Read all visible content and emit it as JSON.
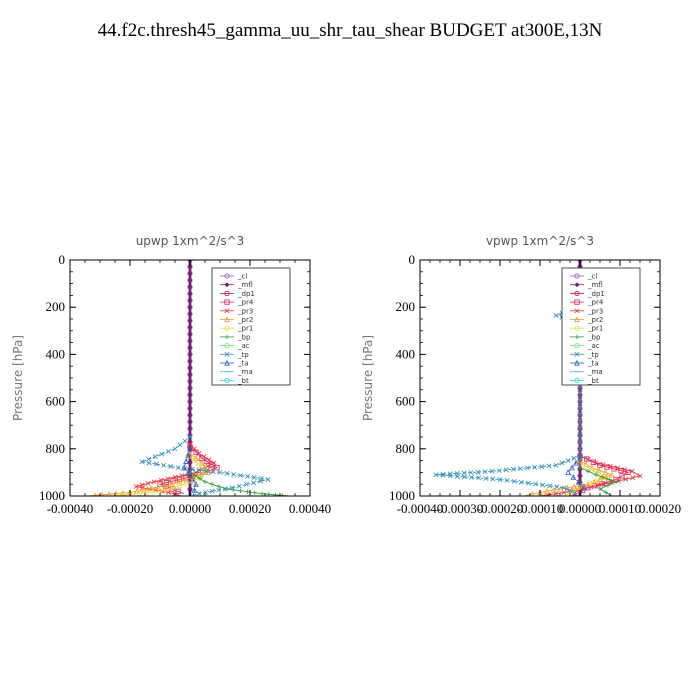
{
  "title": "44.f2c.thresh45_gamma_uu_shr_tau_shear  BUDGET at300E,13N",
  "legend_labels": [
    "_cl",
    "_mfl",
    "_dp1",
    "_pr4",
    "_pr3",
    "_pr2",
    "_pr1",
    "_bp",
    "_ac",
    "_tp",
    "_ta",
    "_ma",
    "_bt"
  ],
  "colors": {
    "_cl": "#9a5cc4",
    "_mfl": "#7a1f6e",
    "_dp1": "#c0123f",
    "_pr4": "#e0245a",
    "_pr3": "#e63b3b",
    "_pr2": "#f0a030",
    "_pr1": "#e8d84a",
    "_bp": "#2e9e3e",
    "_ac": "#6ee86e",
    "_tp": "#2f8fb8",
    "_ta": "#3060c8",
    "_ma": "#4fb8d8",
    "_bt": "#30d8e0"
  },
  "chart_data": [
    {
      "type": "line",
      "title": "upwp   1xm^2/s^3",
      "ylabel": "Pressure [hPa]",
      "xlim": [
        -0.0004,
        0.0004
      ],
      "ylim": [
        1000,
        0
      ],
      "xticks": [
        "-0.00040",
        "-0.00020",
        "0.00000",
        "0.00020",
        "0.00040"
      ],
      "yticks": [
        "0",
        "200",
        "400",
        "600",
        "800",
        "1000"
      ],
      "legend": "top-right",
      "series": [
        {
          "name": "_cl",
          "points": [
            [
              0,
              0
            ],
            [
              0,
              200
            ],
            [
              0,
              400
            ],
            [
              0,
              600
            ],
            [
              0,
              800
            ],
            [
              0,
              1000
            ]
          ]
        },
        {
          "name": "_mfl",
          "points": [
            [
              0,
              0
            ],
            [
              0,
              200
            ],
            [
              0,
              400
            ],
            [
              0,
              600
            ],
            [
              0,
              800
            ],
            [
              0,
              1000
            ]
          ]
        },
        {
          "name": "_pr3",
          "points": [
            [
              0,
              780
            ],
            [
              3e-05,
              820
            ],
            [
              8e-05,
              860
            ],
            [
              2e-05,
              900
            ],
            [
              -0.00012,
              940
            ],
            [
              -0.00018,
              960
            ],
            [
              -5e-05,
              990
            ],
            [
              -3e-05,
              1000
            ]
          ]
        },
        {
          "name": "_pr4",
          "points": [
            [
              0,
              790
            ],
            [
              4e-05,
              840
            ],
            [
              9e-05,
              880
            ],
            [
              3e-05,
              910
            ],
            [
              -0.0001,
              950
            ],
            [
              -2e-05,
              990
            ]
          ]
        },
        {
          "name": "_pr2",
          "points": [
            [
              0,
              820
            ],
            [
              4e-05,
              860
            ],
            [
              6e-05,
              900
            ],
            [
              -6e-05,
              950
            ],
            [
              -0.0002,
              985
            ],
            [
              -0.00034,
              1000
            ]
          ]
        },
        {
          "name": "_pr1",
          "points": [
            [
              0,
              830
            ],
            [
              3e-05,
              870
            ],
            [
              5e-05,
              900
            ],
            [
              1e-05,
              940
            ],
            [
              -0.0001,
              980
            ],
            [
              -0.00026,
              1000
            ]
          ]
        },
        {
          "name": "_bp",
          "points": [
            [
              0,
              900
            ],
            [
              5e-05,
              940
            ],
            [
              0.00012,
              970
            ],
            [
              0.00024,
              990
            ],
            [
              0.00033,
              1000
            ]
          ]
        },
        {
          "name": "_tp",
          "points": [
            [
              0,
              750
            ],
            [
              -5e-05,
              800
            ],
            [
              -0.00016,
              855
            ],
            [
              -4e-05,
              880
            ],
            [
              0.0001,
              900
            ],
            [
              0.00026,
              930
            ],
            [
              0.00014,
              965
            ],
            [
              3e-05,
              990
            ],
            [
              0,
              1000
            ]
          ]
        },
        {
          "name": "_ta",
          "points": [
            [
              0,
              800
            ],
            [
              -2e-05,
              880
            ],
            [
              2e-05,
              950
            ],
            [
              1e-05,
              1000
            ]
          ]
        }
      ]
    },
    {
      "type": "line",
      "title": "vpwp   1xm^2/s^3",
      "ylabel": "Pressure [hPa]",
      "xlim": [
        -0.0004,
        0.0002
      ],
      "ylim": [
        1000,
        0
      ],
      "xticks": [
        "-0.00040",
        "-0.00030",
        "-0.00020",
        "-0.00010",
        "0.00000",
        "0.00010",
        "0.00020"
      ],
      "yticks": [
        "0",
        "200",
        "400",
        "600",
        "800",
        "1000"
      ],
      "legend": "top-right",
      "series": [
        {
          "name": "_cl",
          "points": [
            [
              0,
              0
            ],
            [
              0,
              200
            ],
            [
              0,
              400
            ],
            [
              0,
              600
            ],
            [
              0,
              800
            ],
            [
              0,
              1000
            ]
          ]
        },
        {
          "name": "_mfl",
          "points": [
            [
              0,
              0
            ],
            [
              0,
              200
            ],
            [
              0,
              400
            ],
            [
              0,
              600
            ],
            [
              0,
              800
            ],
            [
              0,
              1000
            ]
          ]
        },
        {
          "name": "_pr3",
          "points": [
            [
              0,
              150
            ],
            [
              -2e-05,
              170
            ],
            [
              -2e-05,
              190
            ],
            [
              0,
              210
            ],
            [
              0,
              830
            ],
            [
              4e-05,
              860
            ],
            [
              0.00013,
              895
            ],
            [
              0.00015,
              915
            ],
            [
              6e-05,
              950
            ],
            [
              -4e-05,
              985
            ],
            [
              -0.0001,
              1000
            ]
          ]
        },
        {
          "name": "_pr4",
          "points": [
            [
              0,
              830
            ],
            [
              5e-05,
              870
            ],
            [
              0.00012,
              900
            ],
            [
              9e-05,
              930
            ],
            [
              2e-05,
              965
            ],
            [
              -2e-05,
              1000
            ]
          ]
        },
        {
          "name": "_pr2",
          "points": [
            [
              0,
              850
            ],
            [
              3e-05,
              880
            ],
            [
              8e-05,
              910
            ],
            [
              2e-05,
              950
            ],
            [
              -0.0001,
              985
            ],
            [
              -0.00014,
              1000
            ]
          ]
        },
        {
          "name": "_pr1",
          "points": [
            [
              0,
              860
            ],
            [
              3e-05,
              890
            ],
            [
              6e-05,
              920
            ],
            [
              1e-05,
              960
            ],
            [
              -4e-05,
              1000
            ]
          ]
        },
        {
          "name": "_bp",
          "points": [
            [
              0,
              880
            ],
            [
              4e-05,
              910
            ],
            [
              9e-05,
              940
            ],
            [
              5e-05,
              970
            ],
            [
              8e-05,
              1000
            ]
          ]
        },
        {
          "name": "_tp",
          "points": [
            [
              0,
              195
            ],
            [
              -6e-05,
              235
            ],
            [
              0,
              265
            ],
            [
              0,
              830
            ],
            [
              -6e-05,
              870
            ],
            [
              -0.00022,
              895
            ],
            [
              -0.00036,
              910
            ],
            [
              -0.0002,
              930
            ],
            [
              -4e-05,
              965
            ],
            [
              0,
              1000
            ]
          ]
        },
        {
          "name": "_ta",
          "points": [
            [
              0,
              840
            ],
            [
              -3e-05,
              900
            ],
            [
              1e-05,
              960
            ],
            [
              0,
              1000
            ]
          ]
        }
      ]
    }
  ]
}
